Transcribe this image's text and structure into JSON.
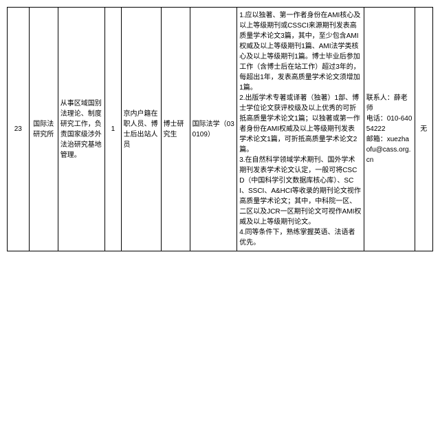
{
  "table": {
    "row": {
      "num": "23",
      "institute": "国际法研究所",
      "work_desc": "从事区域国别法理论、制度研究工作，负责国家级涉外法治研究基地管理。",
      "count": "1",
      "personnel": "京内户籍在职人员、博士后出站人员",
      "education": "博士研究生",
      "major": "国际法学（030109）",
      "requirements": "1.应以独著、第一作者身份在AMI核心及以上等级期刊或CSSCI来源期刊发表高质量学术论文3篇，其中，至少包含AMI权威及以上等级期刊1篇、AMI法学类核心及以上等级期刊1篇。博士毕业后参加工作（含博士后在站工作）超过3年的，每超出1年，发表高质量学术论文须增加1篇。\n2.出版学术专著或译著（独著）1部、博士学位论文获评校级及以上优秀的可折抵高质量学术论文1篇；以独著或第一作者身份在AMI权威及以上等级期刊发表学术论文1篇，可折抵高质量学术论文2篇。\n3.在自然科学领域学术期刊、国外学术期刊发表学术论文认定，一般可将CSCD（中国科学引文数据库核心库）、SCI、SSCI、A&HCI等收录的期刊论文视作高质量学术论文；其中，中科院一区、二区以及JCR一区期刊论文可视作AMI权威及以上等级期刊论文。\n4.同等条件下，熟练掌握英语、法语者优先。",
      "contact": "联系人：薛老师\n电话：010-64054222\n邮箱：xuezhaofu@cass.org.cn",
      "note": "无"
    }
  }
}
